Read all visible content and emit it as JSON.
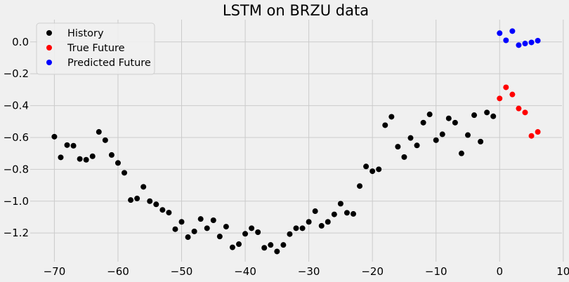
{
  "chart_data": {
    "type": "scatter",
    "title": "LSTM on BRZU data",
    "xlabel": "",
    "ylabel": "",
    "xlim": [
      -73.8,
      9.8
    ],
    "ylim": [
      -1.38,
      0.14
    ],
    "xticks": [
      -70,
      -60,
      -50,
      -40,
      -30,
      -20,
      -10,
      0,
      10
    ],
    "yticks": [
      -1.2,
      -1.0,
      -0.8,
      -0.6,
      -0.4,
      -0.2,
      0.0
    ],
    "grid": true,
    "legend_position": "top-left",
    "series": [
      {
        "name": "History",
        "color": "#000000",
        "x": [
          -70,
          -69,
          -68,
          -67,
          -66,
          -65,
          -64,
          -63,
          -62,
          -61,
          -60,
          -59,
          -58,
          -57,
          -56,
          -55,
          -54,
          -53,
          -52,
          -51,
          -50,
          -49,
          -48,
          -47,
          -46,
          -45,
          -44,
          -43,
          -42,
          -41,
          -40,
          -39,
          -38,
          -37,
          -36,
          -35,
          -34,
          -33,
          -32,
          -31,
          -30,
          -29,
          -28,
          -27,
          -26,
          -25,
          -24,
          -23,
          -22,
          -21,
          -20,
          -19,
          -18,
          -17,
          -16,
          -15,
          -14,
          -13,
          -12,
          -11,
          -10,
          -9,
          -8,
          -7,
          -6,
          -5,
          -4,
          -3,
          -2,
          -1
        ],
        "y": [
          -0.595,
          -0.725,
          -0.648,
          -0.652,
          -0.735,
          -0.74,
          -0.718,
          -0.565,
          -0.617,
          -0.71,
          -0.76,
          -0.822,
          -0.993,
          -0.983,
          -0.91,
          -1.0,
          -1.02,
          -1.055,
          -1.072,
          -1.176,
          -1.13,
          -1.226,
          -1.19,
          -1.112,
          -1.17,
          -1.12,
          -1.222,
          -1.16,
          -1.29,
          -1.27,
          -1.205,
          -1.17,
          -1.195,
          -1.293,
          -1.275,
          -1.316,
          -1.275,
          -1.207,
          -1.17,
          -1.17,
          -1.13,
          -1.063,
          -1.155,
          -1.13,
          -1.083,
          -1.016,
          -1.073,
          -1.08,
          -0.905,
          -0.782,
          -0.812,
          -0.8,
          -0.523,
          -0.47,
          -0.658,
          -0.723,
          -0.603,
          -0.65,
          -0.507,
          -0.455,
          -0.617,
          -0.58,
          -0.48,
          -0.507,
          -0.7,
          -0.585,
          -0.46,
          -0.626,
          -0.443,
          -0.467
        ]
      },
      {
        "name": "True Future",
        "color": "#ff0000",
        "x": [
          0,
          1,
          2,
          3,
          4,
          5,
          6
        ],
        "y": [
          -0.355,
          -0.285,
          -0.33,
          -0.418,
          -0.443,
          -0.59,
          -0.565
        ]
      },
      {
        "name": "Predicted Future",
        "color": "#0000ff",
        "x": [
          0,
          1,
          2,
          3,
          4,
          5,
          6
        ],
        "y": [
          0.055,
          0.01,
          0.068,
          -0.02,
          -0.01,
          -0.003,
          0.008
        ]
      }
    ]
  }
}
